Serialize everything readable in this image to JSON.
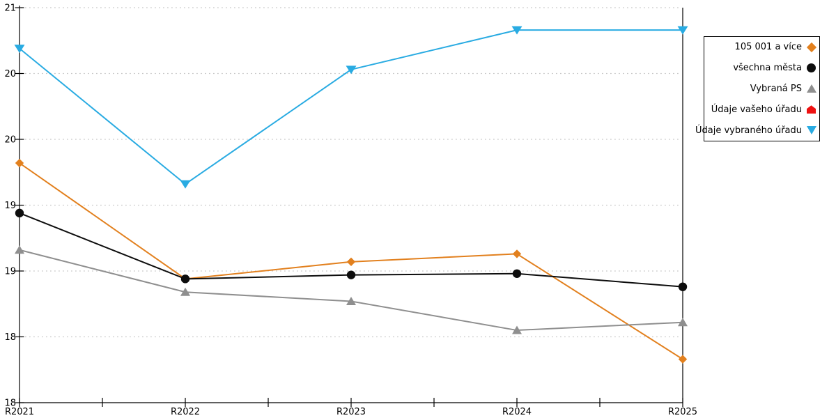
{
  "chart_data": {
    "type": "line",
    "title": "",
    "categories": [
      "R2021",
      "R2022",
      "R2023",
      "R2024",
      "R2025"
    ],
    "series": [
      {
        "name": "105 001 a více",
        "color": "#e2801e",
        "marker": "diamond",
        "values": [
          19.82,
          18.94,
          19.07,
          19.13,
          18.33
        ]
      },
      {
        "name": "všechna města",
        "color": "#0d0d0d",
        "marker": "circle",
        "values": [
          19.44,
          18.94,
          18.97,
          18.98,
          18.88
        ]
      },
      {
        "name": "Vybraná PS",
        "color": "#8f8f8f",
        "marker": "triangle-up",
        "values": [
          19.16,
          18.84,
          18.77,
          18.55,
          18.61
        ]
      },
      {
        "name": "Údaje vašeho úřadu",
        "color": "#ee1111",
        "marker": "home",
        "values": [
          null,
          null,
          null,
          null,
          null
        ]
      },
      {
        "name": "Údaje vybraného úřadu",
        "color": "#29abe2",
        "marker": "triangle-down",
        "values": [
          20.69,
          19.66,
          20.53,
          20.83,
          20.83
        ]
      }
    ],
    "y_axis": {
      "range": [
        18,
        21
      ],
      "tick_step": 0.5,
      "tick_labels_top_to_bottom": [
        "21",
        "20",
        "20",
        "19",
        "19",
        "18",
        "18"
      ]
    },
    "x_axis": {
      "tick_labels": [
        "R2021",
        "R2022",
        "R2023",
        "R2024",
        "R2025"
      ],
      "minor_ticks_between_categories": true
    },
    "grid": {
      "horizontal": "dotted",
      "vertical": "none"
    },
    "legend_position": "right",
    "colors": {
      "background": "#ffffff",
      "axis": "#000000",
      "gridline": "#c8c8c8",
      "text": "#000000"
    }
  }
}
